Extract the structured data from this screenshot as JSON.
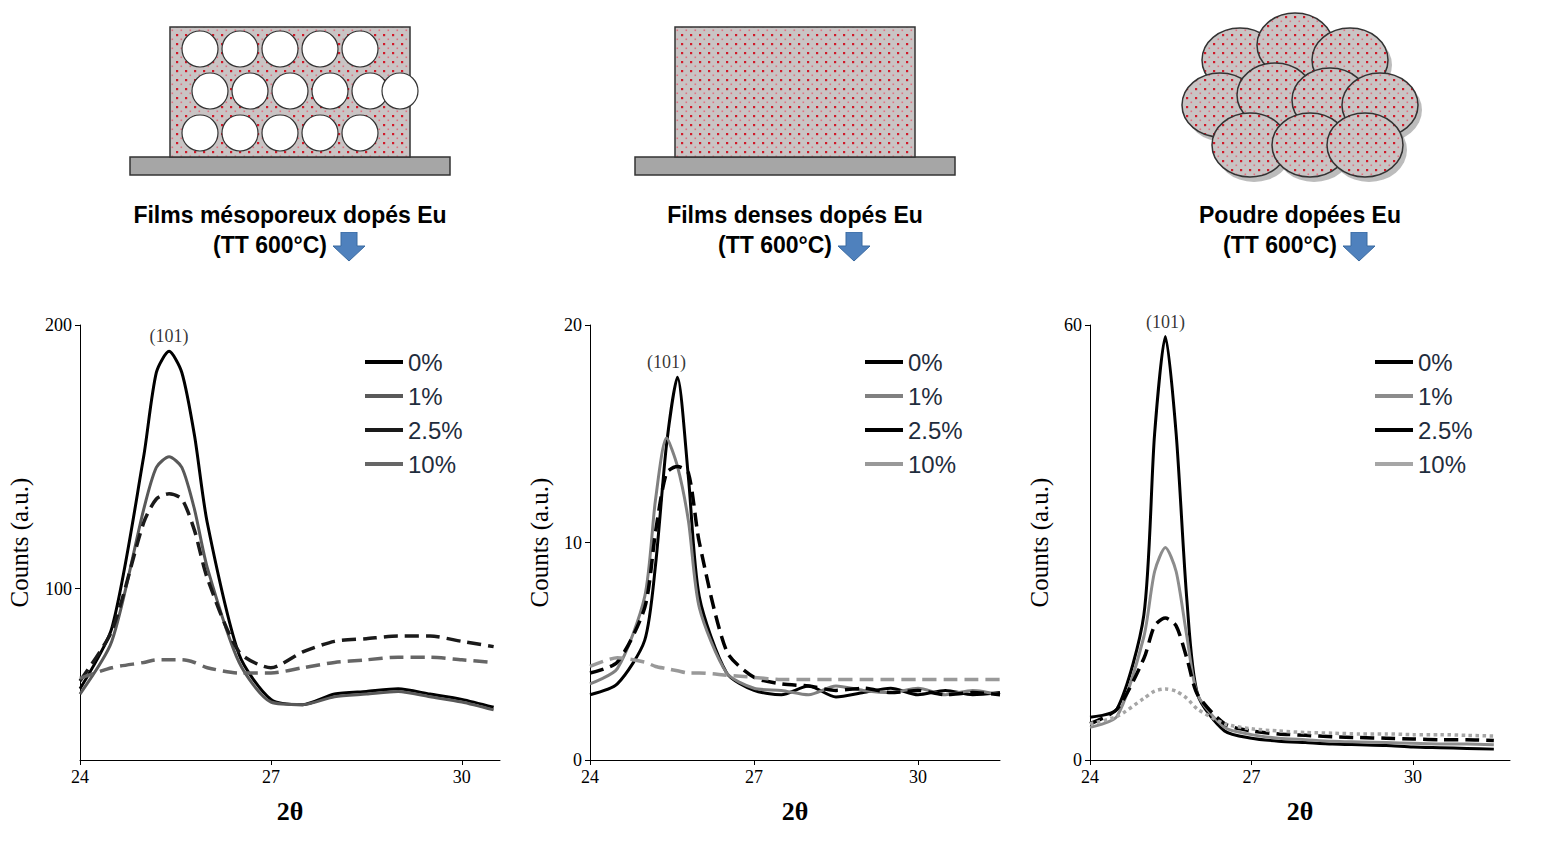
{
  "chart_data": [
    {
      "type": "line",
      "title": "Films mésoporeux dopés Eu (TT 600°C)",
      "xlabel": "2θ",
      "ylabel": "Counts (a.u.)",
      "x": [
        24,
        24.5,
        25,
        25.2,
        25.4,
        25.6,
        25.8,
        26,
        26.5,
        27,
        27.5,
        28,
        28.5,
        29,
        29.5,
        30,
        30.5
      ],
      "xlim": [
        24,
        30.6
      ],
      "xticks": [
        24,
        27,
        30
      ],
      "ylim": [
        35,
        200
      ],
      "yticks": [
        100,
        200
      ],
      "grid": false,
      "legend": "upper right",
      "annotations": [
        {
          "text": "(101)",
          "x": 25.4,
          "y": 190
        }
      ],
      "series": [
        {
          "name": "0%",
          "color": "#000000",
          "line_style": "solid",
          "values": [
            62,
            85,
            150,
            182,
            190,
            182,
            158,
            125,
            75,
            58,
            56,
            60,
            61,
            62,
            60,
            58,
            55
          ]
        },
        {
          "name": "1%",
          "color": "#595959",
          "line_style": "solid",
          "values": [
            60,
            80,
            130,
            146,
            150,
            146,
            130,
            108,
            72,
            57,
            56,
            59,
            60,
            61,
            59,
            57,
            54
          ]
        },
        {
          "name": "2.5%",
          "color": "#1a1a1a",
          "line_style": "dashed",
          "values": [
            65,
            84,
            125,
            134,
            136,
            134,
            122,
            104,
            76,
            70,
            76,
            80,
            81,
            82,
            82,
            80,
            78
          ]
        },
        {
          "name": "10%",
          "color": "#666666",
          "line_style": "dashed",
          "values": [
            66,
            70,
            72,
            73,
            73,
            73,
            72,
            70,
            68,
            68,
            70,
            72,
            73,
            74,
            74,
            73,
            72
          ]
        }
      ]
    },
    {
      "type": "line",
      "title": "Films denses dopés Eu (TT 600°C)",
      "xlabel": "2θ",
      "ylabel": "Counts (a.u.)",
      "x": [
        24,
        24.5,
        25,
        25.2,
        25.4,
        25.6,
        25.8,
        26,
        26.5,
        27,
        27.5,
        28,
        28.5,
        29,
        29.5,
        30,
        30.5,
        31,
        31.5
      ],
      "xlim": [
        24,
        31.5
      ],
      "xticks": [
        24,
        27,
        30
      ],
      "ylim": [
        0,
        20
      ],
      "yticks": [
        0,
        10,
        20
      ],
      "grid": false,
      "legend": "upper right",
      "annotations": [
        {
          "text": "(101)",
          "x": 25.4,
          "y": 17.6
        }
      ],
      "series": [
        {
          "name": "0%",
          "color": "#000000",
          "line_style": "solid",
          "values": [
            3.0,
            3.5,
            5.5,
            9,
            14.5,
            17.6,
            13,
            7.5,
            4,
            3.2,
            3.0,
            3.4,
            2.9,
            3.1,
            3.3,
            3.0,
            3.2,
            3.0,
            3.1
          ]
        },
        {
          "name": "1%",
          "color": "#808080",
          "line_style": "solid",
          "values": [
            3.5,
            4.2,
            7.5,
            12,
            14.8,
            13.5,
            11,
            7,
            4,
            3.3,
            3.2,
            3.0,
            3.4,
            3.2,
            3.1,
            3.3,
            3.0,
            3.2,
            3.0
          ]
        },
        {
          "name": "2.5%",
          "color": "#000000",
          "line_style": "dashed",
          "values": [
            4.0,
            4.5,
            7,
            10.5,
            13.2,
            13.5,
            13.2,
            10,
            5,
            3.8,
            3.5,
            3.4,
            3.2,
            3.3,
            3.1,
            3.2,
            3.0,
            3.1,
            3.0
          ]
        },
        {
          "name": "10%",
          "color": "#999999",
          "line_style": "dashed",
          "values": [
            4.3,
            4.7,
            4.5,
            4.3,
            4.2,
            4.1,
            4.0,
            4.0,
            3.9,
            3.8,
            3.7,
            3.7,
            3.7,
            3.7,
            3.7,
            3.7,
            3.7,
            3.7,
            3.7
          ]
        }
      ]
    },
    {
      "type": "line",
      "title": "Poudre dopées Eu (TT 600°C)",
      "xlabel": "2θ",
      "ylabel": "Counts (a.u.)",
      "x": [
        24,
        24.5,
        25,
        25.2,
        25.4,
        25.6,
        25.8,
        26,
        26.5,
        27,
        27.5,
        28,
        28.5,
        29,
        29.5,
        30,
        30.5,
        31,
        31.5
      ],
      "xlim": [
        24,
        31.8
      ],
      "xticks": [
        24,
        27,
        30
      ],
      "ylim": [
        0,
        60
      ],
      "yticks": [
        0,
        60
      ],
      "grid": false,
      "legend": "upper right",
      "annotations": [
        {
          "text": "(101)",
          "x": 25.4,
          "y": 58.4
        }
      ],
      "series": [
        {
          "name": "0%",
          "color": "#000000",
          "line_style": "solid",
          "values": [
            5.9,
            7,
            20,
            45,
            58.4,
            45,
            22,
            9,
            4,
            3,
            2.6,
            2.4,
            2.2,
            2.1,
            2.0,
            1.8,
            1.7,
            1.6,
            1.5
          ]
        },
        {
          "name": "1%",
          "color": "#8c8c8c",
          "line_style": "solid",
          "values": [
            4.5,
            6,
            17,
            26,
            29.3,
            26,
            17,
            9,
            4.5,
            3.5,
            3.0,
            2.8,
            2.6,
            2.5,
            2.4,
            2.3,
            2.2,
            2.2,
            2.1
          ]
        },
        {
          "name": "2.5%",
          "color": "#000000",
          "line_style": "dashed",
          "values": [
            5,
            7,
            14,
            18.5,
            19.6,
            18.5,
            14,
            9,
            5,
            4,
            3.6,
            3.4,
            3.2,
            3.1,
            3.0,
            2.9,
            2.8,
            2.8,
            2.7
          ]
        },
        {
          "name": "10%",
          "color": "#a6a6a6",
          "line_style": "dotted",
          "values": [
            5,
            6,
            8.5,
            9.5,
            9.8,
            9.5,
            8.5,
            7,
            5,
            4.3,
            4,
            3.8,
            3.7,
            3.6,
            3.6,
            3.5,
            3.5,
            3.4,
            3.3
          ]
        }
      ]
    }
  ]
}
